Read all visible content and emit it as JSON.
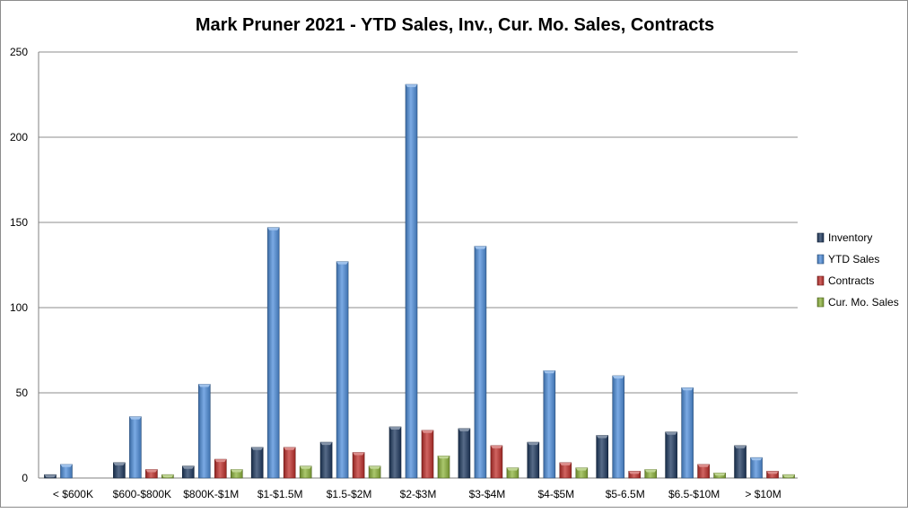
{
  "chart_data": {
    "type": "bar",
    "title": "Mark Pruner 2021 - YTD Sales, Inv., Cur. Mo. Sales, Contracts",
    "xlabel": "",
    "ylabel": "",
    "ylim": [
      0,
      250
    ],
    "yticks": [
      0,
      50,
      100,
      150,
      200,
      250
    ],
    "grid": true,
    "legend_position": "right",
    "categories": [
      "< $600K",
      "$600-$800K",
      "$800K-$1M",
      "$1-$1.5M",
      "$1.5-$2M",
      "$2-$3M",
      "$3-$4M",
      "$4-$5M",
      "$5-6.5M",
      "$6.5-$10M",
      "> $10M"
    ],
    "series": [
      {
        "name": "Inventory",
        "color": "#1F3A60",
        "values": [
          2,
          9,
          7,
          18,
          21,
          30,
          29,
          21,
          25,
          27,
          19
        ]
      },
      {
        "name": "YTD Sales",
        "color": "#4F8EDB",
        "values": [
          8,
          36,
          55,
          147,
          127,
          231,
          136,
          63,
          60,
          53,
          12
        ]
      },
      {
        "name": "Contracts",
        "color": "#C0302C",
        "values": [
          0,
          5,
          11,
          18,
          15,
          28,
          19,
          9,
          4,
          8,
          4
        ]
      },
      {
        "name": "Cur. Mo. Sales",
        "color": "#8DB43C",
        "values": [
          0,
          2,
          5,
          7,
          7,
          13,
          6,
          6,
          5,
          3,
          2
        ]
      }
    ]
  }
}
